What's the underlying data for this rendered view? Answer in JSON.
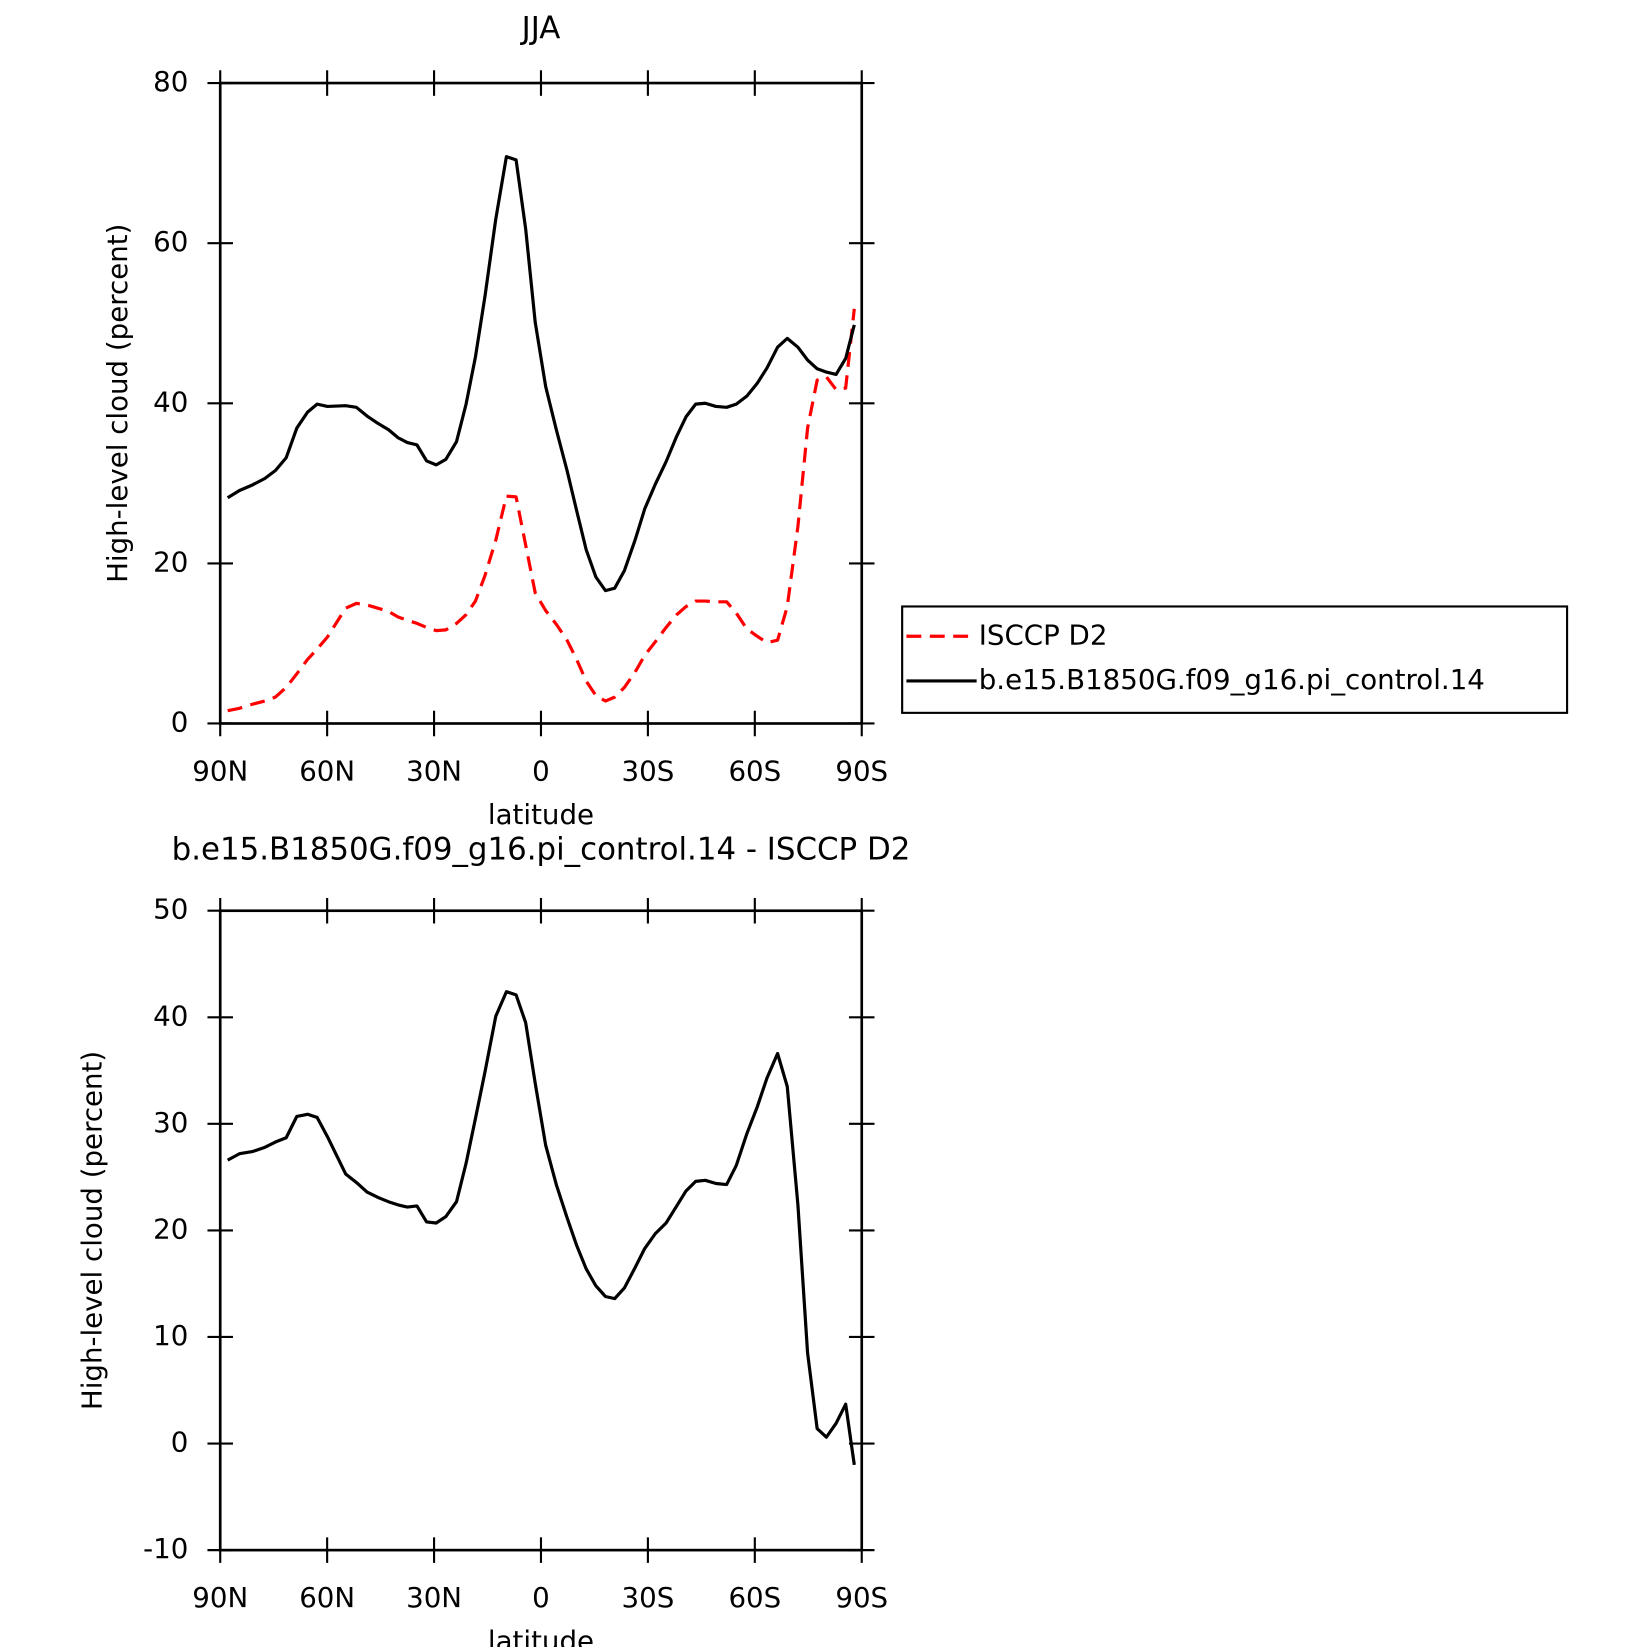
{
  "chart_data": [
    {
      "type": "line",
      "title": "JJA",
      "xlabel": "latitude",
      "ylabel": "High-level cloud (percent)",
      "x": [
        87.9,
        84.6,
        81.0,
        77.5,
        74.5,
        71.5,
        68.5,
        65.5,
        62.8,
        59.9,
        54.8,
        51.8,
        48.8,
        45.8,
        42.8,
        40.1,
        37.5,
        34.8,
        32.1,
        29.4,
        26.7,
        23.7,
        21.0,
        18.4,
        15.7,
        12.7,
        9.7,
        7.0,
        4.3,
        1.6,
        -1.3,
        -4.3,
        -7.3,
        -10.0,
        -12.7,
        -15.4,
        -18.1,
        -20.7,
        -23.4,
        -26.4,
        -29.1,
        -32.1,
        -35.1,
        -38.1,
        -40.7,
        -43.4,
        -46.1,
        -49.1,
        -52.1,
        -54.8,
        -57.8,
        -60.7,
        -63.4,
        -66.4,
        -69.1,
        -72.1,
        -74.8,
        -77.5,
        -80.1,
        -82.8,
        -85.5,
        -87.9
      ],
      "series": [
        {
          "name": "ISCCP D2",
          "color": "#ff0000",
          "dashed": true,
          "values": [
            1.6,
            1.9,
            2.4,
            2.8,
            3.3,
            4.5,
            6.2,
            8.0,
            9.3,
            10.8,
            14.4,
            15.0,
            14.8,
            14.4,
            14.0,
            13.3,
            12.9,
            12.5,
            12.0,
            11.6,
            11.7,
            12.5,
            13.6,
            15.3,
            18.5,
            22.9,
            28.4,
            28.3,
            22.3,
            16.3,
            14.1,
            12.4,
            10.4,
            8.0,
            5.3,
            3.5,
            2.8,
            3.3,
            4.5,
            6.4,
            8.5,
            10.2,
            12.0,
            13.6,
            14.6,
            15.3,
            15.3,
            15.2,
            15.2,
            13.8,
            11.8,
            10.9,
            10.1,
            10.4,
            14.6,
            24.6,
            36.9,
            42.9,
            43.3,
            41.7,
            41.9,
            51.8
          ]
        },
        {
          "name": "b.e15.B1850G.f09_g16.pi_control.14",
          "color": "#000000",
          "dashed": false,
          "values": [
            28.2,
            29.1,
            29.8,
            30.6,
            31.6,
            33.2,
            36.9,
            38.9,
            39.9,
            39.6,
            39.7,
            39.5,
            38.4,
            37.5,
            36.7,
            35.7,
            35.1,
            34.8,
            32.8,
            32.3,
            33.0,
            35.2,
            39.9,
            45.8,
            53.4,
            63.0,
            70.8,
            70.4,
            61.8,
            50.1,
            42.1,
            36.7,
            31.6,
            26.6,
            21.7,
            18.3,
            16.6,
            16.9,
            19.1,
            22.9,
            26.8,
            29.9,
            32.7,
            35.9,
            38.3,
            39.9,
            40.0,
            39.6,
            39.5,
            39.9,
            40.9,
            42.5,
            44.4,
            47.0,
            48.1,
            47.0,
            45.4,
            44.3,
            43.9,
            43.6,
            45.6,
            49.8
          ]
        }
      ],
      "xlim": [
        90,
        -90
      ],
      "xticks": [
        {
          "value": 90,
          "label": "90N"
        },
        {
          "value": 60,
          "label": "60N"
        },
        {
          "value": 30,
          "label": "30N"
        },
        0,
        {
          "value": -30,
          "label": "30S"
        },
        {
          "value": -60,
          "label": "60S"
        },
        {
          "value": -90,
          "label": "90S"
        }
      ],
      "ylim": [
        0,
        80
      ],
      "yticks": [
        0,
        20,
        40,
        60,
        80
      ],
      "legend": "right"
    },
    {
      "type": "line",
      "title": "b.e15.B1850G.f09_g16.pi_control.14 - ISCCP D2",
      "xlabel": "latitude",
      "ylabel": "High-level cloud (percent)",
      "x": [
        87.9,
        84.6,
        81.0,
        77.5,
        74.5,
        71.5,
        68.5,
        65.5,
        62.8,
        59.9,
        54.8,
        51.8,
        48.8,
        45.8,
        42.8,
        40.1,
        37.5,
        34.8,
        32.1,
        29.4,
        26.7,
        23.7,
        21.0,
        18.4,
        15.7,
        12.7,
        9.7,
        7.0,
        4.3,
        1.6,
        -1.3,
        -4.3,
        -7.3,
        -10.0,
        -12.7,
        -15.4,
        -18.1,
        -20.7,
        -23.4,
        -26.4,
        -29.1,
        -32.1,
        -35.1,
        -38.1,
        -40.7,
        -43.4,
        -46.1,
        -49.1,
        -52.1,
        -54.8,
        -57.8,
        -60.7,
        -63.4,
        -66.4,
        -69.1,
        -72.1,
        -74.8,
        -77.5,
        -80.1,
        -82.8,
        -85.5,
        -87.9
      ],
      "series": [
        {
          "color": "#000000",
          "dashed": false,
          "values": [
            26.6,
            27.2,
            27.4,
            27.8,
            28.3,
            28.7,
            30.7,
            30.9,
            30.6,
            28.8,
            25.3,
            24.5,
            23.6,
            23.1,
            22.7,
            22.4,
            22.2,
            22.3,
            20.8,
            20.7,
            21.3,
            22.7,
            26.3,
            30.5,
            34.9,
            40.1,
            42.4,
            42.1,
            39.5,
            33.8,
            28.0,
            24.3,
            21.2,
            18.6,
            16.4,
            14.8,
            13.8,
            13.6,
            14.6,
            16.5,
            18.3,
            19.7,
            20.7,
            22.3,
            23.7,
            24.6,
            24.7,
            24.4,
            24.3,
            26.1,
            29.1,
            31.6,
            34.3,
            36.6,
            33.5,
            22.4,
            8.5,
            1.4,
            0.6,
            1.9,
            3.7,
            -2.0
          ]
        }
      ],
      "xlim": [
        90,
        -90
      ],
      "xticks": [
        {
          "value": 90,
          "label": "90N"
        },
        {
          "value": 60,
          "label": "60N"
        },
        {
          "value": 30,
          "label": "30N"
        },
        0,
        {
          "value": -30,
          "label": "30S"
        },
        {
          "value": -60,
          "label": "60S"
        },
        {
          "value": -90,
          "label": "90S"
        }
      ],
      "ylim": [
        -10,
        50
      ],
      "yticks": [
        -10,
        0,
        10,
        20,
        30,
        40,
        50
      ]
    }
  ]
}
